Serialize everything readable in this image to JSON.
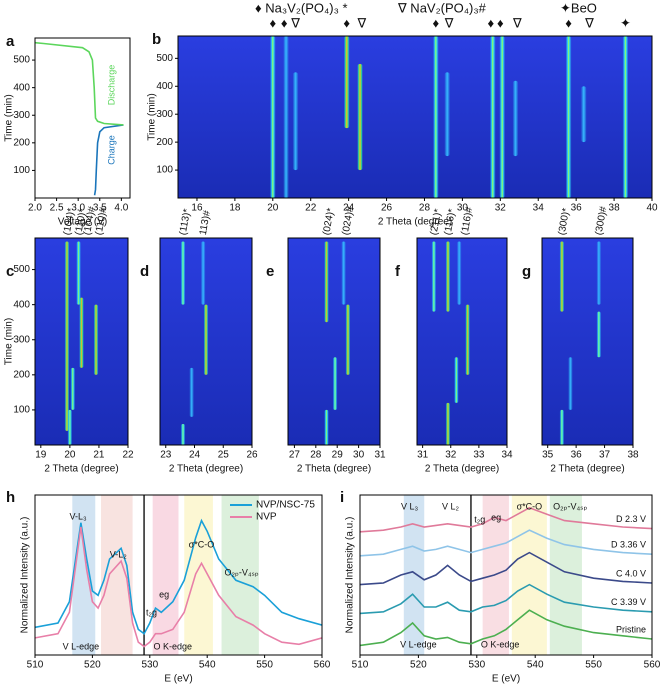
{
  "panels": [
    {
      "label": "a",
      "type": "line",
      "xlabel": "Voltage (V)",
      "ylabel": "Time (min)",
      "xlim": [
        2.0,
        4.2
      ],
      "ylim": [
        0,
        580
      ],
      "xticks": [
        {
          "value": 2,
          "label": "2.0"
        },
        {
          "value": 2.5,
          "label": "2.5"
        },
        {
          "value": 3,
          "label": "3.0"
        },
        {
          "value": 3.5,
          "label": "3.5"
        },
        {
          "value": 4,
          "label": "4.0"
        }
      ],
      "yticks": [
        100,
        200,
        300,
        400,
        500
      ],
      "series": [
        {
          "name": "Charge",
          "color": "#1a75bb",
          "x": [
            3.38,
            3.4,
            3.42,
            3.45,
            3.5,
            3.6,
            4.05
          ],
          "values": [
            10,
            30,
            100,
            200,
            240,
            255,
            265
          ]
        },
        {
          "name": "Discharge",
          "color": "#5cd65c",
          "x": [
            4.05,
            3.6,
            3.45,
            3.4,
            3.37,
            3.33,
            3.25,
            3.1,
            2.2,
            2.0
          ],
          "values": [
            265,
            270,
            278,
            290,
            400,
            500,
            530,
            545,
            560,
            563
          ]
        }
      ]
    },
    {
      "label": "b",
      "type": "heatmap",
      "xlabel": "2 Theta (degree)",
      "ylabel": "Time (min)",
      "xlim": [
        15,
        40
      ],
      "ylim": [
        0,
        580
      ],
      "xticks": [
        16,
        18,
        20,
        22,
        24,
        26,
        28,
        30,
        32,
        34,
        36,
        38,
        40
      ],
      "yticks": [
        100,
        200,
        300,
        400,
        500
      ],
      "legend": [
        "♦ Na₃V₂(PO₄)₃ *",
        "∇ NaV₂(PO₄)₃#",
        "✦BeO"
      ],
      "markers": [
        {
          "x": 20.0,
          "symbol": "♦"
        },
        {
          "x": 20.6,
          "symbol": "♦"
        },
        {
          "x": 21.2,
          "symbol": "∇"
        },
        {
          "x": 23.9,
          "symbol": "♦"
        },
        {
          "x": 24.7,
          "symbol": "∇"
        },
        {
          "x": 28.6,
          "symbol": "♦"
        },
        {
          "x": 29.3,
          "symbol": "∇"
        },
        {
          "x": 31.5,
          "symbol": "♦"
        },
        {
          "x": 32.0,
          "symbol": "♦"
        },
        {
          "x": 32.9,
          "symbol": "∇"
        },
        {
          "x": 35.6,
          "symbol": "♦"
        },
        {
          "x": 36.7,
          "symbol": "∇"
        },
        {
          "x": 38.6,
          "symbol": "✦"
        }
      ],
      "streaks": [
        {
          "x": 20.0,
          "from": 0,
          "to": 580,
          "level": "mid"
        },
        {
          "x": 20.7,
          "from": 0,
          "to": 580,
          "level": "faint"
        },
        {
          "x": 21.2,
          "from": 100,
          "to": 450,
          "level": "faint"
        },
        {
          "x": 23.9,
          "from": 250,
          "to": 580,
          "level": "hot"
        },
        {
          "x": 24.6,
          "from": 100,
          "to": 480,
          "level": "hot"
        },
        {
          "x": 28.6,
          "from": 0,
          "to": 580,
          "level": "mid"
        },
        {
          "x": 29.2,
          "from": 150,
          "to": 450,
          "level": "faint"
        },
        {
          "x": 31.6,
          "from": 0,
          "to": 580,
          "level": "mid"
        },
        {
          "x": 32.1,
          "from": 0,
          "to": 580,
          "level": "mid"
        },
        {
          "x": 32.8,
          "from": 150,
          "to": 420,
          "level": "faint"
        },
        {
          "x": 35.6,
          "from": 0,
          "to": 580,
          "level": "mid"
        },
        {
          "x": 36.4,
          "from": 200,
          "to": 400,
          "level": "faint"
        },
        {
          "x": 38.6,
          "from": 0,
          "to": 580,
          "level": "mid"
        }
      ]
    },
    {
      "label": "c",
      "type": "heatmap",
      "xlabel": "2 Theta (degree)",
      "ylabel": "Time (min)",
      "xlim": [
        18.8,
        22
      ],
      "ylim": [
        0,
        590
      ],
      "xticks": [
        19,
        20,
        21,
        22
      ],
      "yticks": [
        100,
        200,
        300,
        400,
        500
      ],
      "peaks": [
        {
          "x": 19.9,
          "label": "(104)*"
        },
        {
          "x": 20.3,
          "label": "(110)*"
        },
        {
          "x": 20.6,
          "label": "(104)#"
        },
        {
          "x": 21.0,
          "label": "(110)#"
        }
      ],
      "streaks": [
        {
          "x": 19.9,
          "from": 40,
          "to": 580,
          "level": "hot"
        },
        {
          "x": 20.3,
          "from": 400,
          "to": 580,
          "level": "mid"
        },
        {
          "x": 20.4,
          "from": 220,
          "to": 420,
          "level": "hot"
        },
        {
          "x": 20.9,
          "from": 200,
          "to": 400,
          "level": "hot"
        },
        {
          "x": 20.0,
          "from": 0,
          "to": 100,
          "level": "mid"
        },
        {
          "x": 20.1,
          "from": 100,
          "to": 220,
          "level": "mid"
        }
      ]
    },
    {
      "label": "d",
      "type": "heatmap",
      "xlabel": "2 Theta (degree)",
      "xlim": [
        22.8,
        26
      ],
      "ylim": [
        0,
        590
      ],
      "xticks": [
        23,
        24,
        25,
        26
      ],
      "peaks": [
        {
          "x": 23.6,
          "label": "(113)*"
        },
        {
          "x": 24.3,
          "label": "113)#"
        }
      ],
      "streaks": [
        {
          "x": 23.6,
          "from": 400,
          "to": 580,
          "level": "mid"
        },
        {
          "x": 23.6,
          "from": 0,
          "to": 60,
          "level": "mid"
        },
        {
          "x": 24.3,
          "from": 400,
          "to": 580,
          "level": "faint"
        },
        {
          "x": 24.4,
          "from": 200,
          "to": 400,
          "level": "hot"
        },
        {
          "x": 23.9,
          "from": 80,
          "to": 220,
          "level": "faint"
        }
      ]
    },
    {
      "label": "e",
      "type": "heatmap",
      "xlabel": "2 Theta (degree)",
      "xlim": [
        26.7,
        31
      ],
      "ylim": [
        0,
        590
      ],
      "xticks": [
        27,
        28,
        29,
        30,
        31
      ],
      "peaks": [
        {
          "x": 28.5,
          "label": "(024)*"
        },
        {
          "x": 29.4,
          "label": "(024)#"
        }
      ],
      "streaks": [
        {
          "x": 28.5,
          "from": 350,
          "to": 580,
          "level": "hot"
        },
        {
          "x": 29.3,
          "from": 400,
          "to": 580,
          "level": "faint"
        },
        {
          "x": 29.5,
          "from": 200,
          "to": 400,
          "level": "hot"
        },
        {
          "x": 28.5,
          "from": 0,
          "to": 100,
          "level": "mid"
        },
        {
          "x": 28.9,
          "from": 100,
          "to": 250,
          "level": "mid"
        }
      ]
    },
    {
      "label": "f",
      "type": "heatmap",
      "xlabel": "2 Theta (degree)",
      "xlim": [
        30.8,
        34
      ],
      "ylim": [
        0,
        590
      ],
      "xticks": [
        31,
        32,
        33,
        34
      ],
      "peaks": [
        {
          "x": 31.4,
          "label": "(211)*"
        },
        {
          "x": 31.9,
          "label": "(116)*"
        },
        {
          "x": 32.5,
          "label": "(116)#"
        }
      ],
      "streaks": [
        {
          "x": 31.4,
          "from": 380,
          "to": 580,
          "level": "mid"
        },
        {
          "x": 31.9,
          "from": 380,
          "to": 580,
          "level": "hot"
        },
        {
          "x": 32.6,
          "from": 200,
          "to": 400,
          "level": "hot"
        },
        {
          "x": 32.3,
          "from": 400,
          "to": 580,
          "level": "faint"
        },
        {
          "x": 31.9,
          "from": 0,
          "to": 120,
          "level": "hot"
        },
        {
          "x": 32.2,
          "from": 120,
          "to": 250,
          "level": "mid"
        }
      ]
    },
    {
      "label": "g",
      "type": "heatmap",
      "xlabel": "2 Theta (degree)",
      "xlim": [
        34.8,
        38
      ],
      "ylim": [
        0,
        590
      ],
      "xticks": [
        35,
        36,
        37,
        38
      ],
      "peaks": [
        {
          "x": 35.5,
          "label": "(300)*"
        },
        {
          "x": 36.8,
          "label": "(300)#"
        }
      ],
      "streaks": [
        {
          "x": 35.5,
          "from": 380,
          "to": 580,
          "level": "hot"
        },
        {
          "x": 36.8,
          "from": 250,
          "to": 380,
          "level": "mid"
        },
        {
          "x": 35.5,
          "from": 0,
          "to": 100,
          "level": "mid"
        },
        {
          "x": 36.8,
          "from": 400,
          "to": 580,
          "level": "faint"
        },
        {
          "x": 35.8,
          "from": 100,
          "to": 250,
          "level": "faint"
        }
      ]
    },
    {
      "label": "h",
      "type": "line",
      "xlabel": "E (eV)",
      "ylabel": "Normalized Intensity (a.u.)",
      "xlim": [
        510,
        560
      ],
      "ylim": [
        0,
        0.75
      ],
      "xticks": [
        510,
        520,
        530,
        540,
        550,
        560
      ],
      "divider": 529,
      "bands": [
        {
          "from": 516.5,
          "to": 520.5,
          "color": "#c6dcef"
        },
        {
          "from": 521.5,
          "to": 527,
          "color": "#f6dcd8"
        },
        {
          "from": 530.5,
          "to": 535,
          "color": "#f8d0dc"
        },
        {
          "from": 536,
          "to": 541,
          "color": "#fbf5c8"
        },
        {
          "from": 542.5,
          "to": 549,
          "color": "#d3ecd3"
        }
      ],
      "annotations": [
        "V-L₃",
        "V-L₂",
        "eg",
        "t₂g",
        "σ*C-O",
        "O₂ₚ-V₄ₛₚ",
        "V L-edge",
        "O K-edge"
      ],
      "x": [
        510,
        514,
        516,
        518,
        519,
        520,
        521,
        522,
        523,
        525,
        526,
        527,
        528,
        529,
        530,
        531,
        532,
        534,
        536,
        538,
        539,
        540,
        542,
        545,
        548,
        550,
        553,
        556,
        560
      ],
      "series": [
        {
          "name": "NVP/NSC-75",
          "color": "#1aa0d8",
          "values": [
            0.13,
            0.15,
            0.25,
            0.62,
            0.45,
            0.3,
            0.28,
            0.35,
            0.45,
            0.5,
            0.42,
            0.2,
            0.12,
            0.1,
            0.15,
            0.22,
            0.2,
            0.25,
            0.35,
            0.55,
            0.63,
            0.58,
            0.45,
            0.35,
            0.32,
            0.28,
            0.2,
            0.17,
            0.14
          ]
        },
        {
          "name": "NVP",
          "color": "#e87fa8",
          "values": [
            0.08,
            0.1,
            0.2,
            0.6,
            0.4,
            0.25,
            0.22,
            0.28,
            0.38,
            0.44,
            0.36,
            0.15,
            0.06,
            0.04,
            0.06,
            0.1,
            0.1,
            0.12,
            0.2,
            0.38,
            0.43,
            0.38,
            0.28,
            0.18,
            0.14,
            0.1,
            0.06,
            0.05,
            0.08
          ]
        }
      ]
    },
    {
      "label": "i",
      "type": "line",
      "xlabel": "E (eV)",
      "ylabel": "Normalized Intensity (a.u.)",
      "xlim": [
        510,
        560
      ],
      "ylim": [
        0,
        1
      ],
      "xticks": [
        510,
        520,
        530,
        540,
        550,
        560
      ],
      "divider": 529,
      "bands": [
        {
          "from": 517.5,
          "to": 521,
          "color": "#c6dcef"
        },
        {
          "from": 531,
          "to": 535.5,
          "color": "#f8d6dc"
        },
        {
          "from": 536,
          "to": 542,
          "color": "#fbf5c8"
        },
        {
          "from": 542.5,
          "to": 548,
          "color": "#d3ecd3"
        }
      ],
      "annotations": [
        "V L₃",
        "V L₂",
        "t₂g",
        "eg",
        "σ*C-O",
        "O₂ₚ-V₄ₛₚ",
        "V L-edge",
        "O K-edge"
      ],
      "x": [
        510,
        514,
        517,
        519,
        521,
        523,
        525,
        527,
        529,
        531,
        533,
        535,
        537,
        539,
        542,
        545,
        550,
        555,
        560
      ],
      "series": [
        {
          "name": "D 2.3 V",
          "color": "#e07a9a",
          "values": [
            0.77,
            0.78,
            0.8,
            0.82,
            0.8,
            0.81,
            0.82,
            0.81,
            0.8,
            0.82,
            0.86,
            0.84,
            0.88,
            0.92,
            0.88,
            0.84,
            0.82,
            0.8,
            0.79
          ]
        },
        {
          "name": "D 3.36 V",
          "color": "#8fc4e8",
          "values": [
            0.62,
            0.63,
            0.66,
            0.68,
            0.65,
            0.66,
            0.68,
            0.66,
            0.64,
            0.66,
            0.68,
            0.7,
            0.74,
            0.78,
            0.73,
            0.69,
            0.66,
            0.64,
            0.63
          ]
        },
        {
          "name": "C 4.0 V",
          "color": "#3b4a8a",
          "values": [
            0.44,
            0.45,
            0.5,
            0.52,
            0.47,
            0.5,
            0.56,
            0.5,
            0.46,
            0.48,
            0.5,
            0.53,
            0.6,
            0.64,
            0.58,
            0.52,
            0.48,
            0.46,
            0.45
          ]
        },
        {
          "name": "C 3.39 V",
          "color": "#2a9bb0",
          "values": [
            0.26,
            0.27,
            0.32,
            0.38,
            0.3,
            0.3,
            0.33,
            0.28,
            0.27,
            0.3,
            0.31,
            0.34,
            0.4,
            0.44,
            0.38,
            0.33,
            0.3,
            0.28,
            0.27
          ]
        },
        {
          "name": "Pristine",
          "color": "#4caf50",
          "values": [
            0.06,
            0.08,
            0.14,
            0.2,
            0.12,
            0.1,
            0.11,
            0.08,
            0.07,
            0.1,
            0.12,
            0.16,
            0.22,
            0.28,
            0.22,
            0.18,
            0.14,
            0.12,
            0.1
          ]
        }
      ]
    }
  ]
}
